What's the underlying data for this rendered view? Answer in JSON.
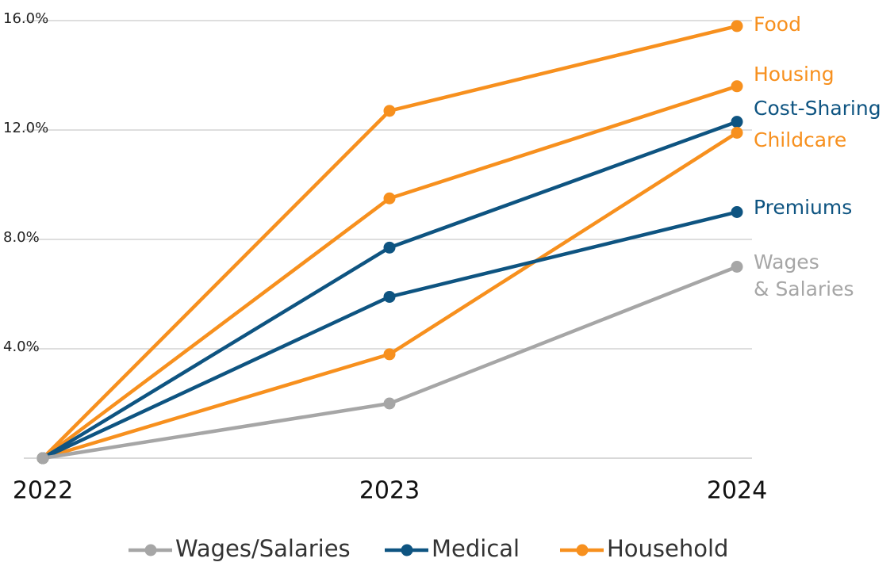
{
  "chart_data": {
    "type": "line",
    "categories": [
      "2022",
      "2023",
      "2024"
    ],
    "series": [
      {
        "label": [
          "Food"
        ],
        "color": "#f7901e",
        "values": [
          0,
          12.7,
          15.8
        ]
      },
      {
        "label": [
          "Housing"
        ],
        "color": "#f7901e",
        "values": [
          0,
          9.5,
          13.6
        ]
      },
      {
        "label": [
          "Cost-Sharing"
        ],
        "color": "#0e5481",
        "values": [
          0,
          7.7,
          12.3
        ]
      },
      {
        "label": [
          "Childcare"
        ],
        "color": "#f7901e",
        "values": [
          0,
          3.8,
          11.9
        ]
      },
      {
        "label": [
          "Premiums"
        ],
        "color": "#0e5481",
        "values": [
          0,
          5.9,
          9.0
        ]
      },
      {
        "label": [
          "Wages",
          "& Salaries"
        ],
        "color": "#a6a6a6",
        "values": [
          0,
          2.0,
          7.0
        ]
      }
    ],
    "legend": [
      {
        "name": "Wages/Salaries",
        "color": "#a6a6a6"
      },
      {
        "name": "Medical",
        "color": "#0e5481"
      },
      {
        "name": "Household",
        "color": "#f7901e"
      }
    ],
    "ylim": [
      0,
      16
    ],
    "yticks": [
      {
        "value": 4,
        "label": "4.0%"
      },
      {
        "value": 8,
        "label": "8.0%"
      },
      {
        "value": 12,
        "label": "12.0%"
      },
      {
        "value": 16,
        "label": "16.0%"
      }
    ],
    "grid": true
  }
}
